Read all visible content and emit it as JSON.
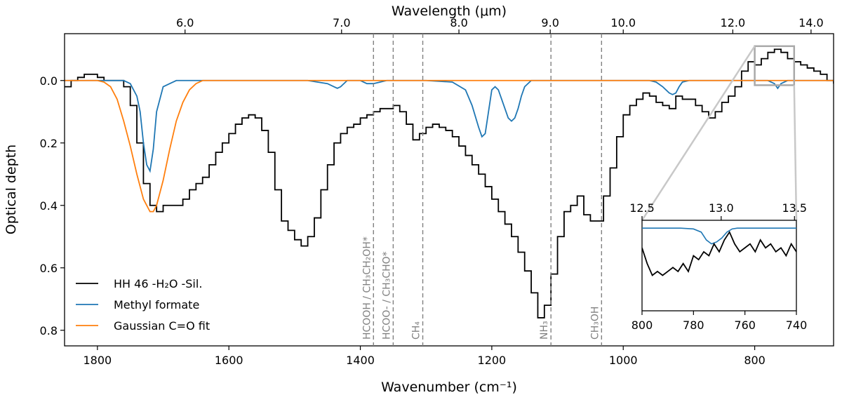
{
  "chart_data": {
    "type": "line",
    "xlabel": "Wavenumber (cm⁻¹)",
    "ylabel": "Optical depth",
    "top_xlabel": "Wavelength (μm)",
    "xlim": [
      1850,
      680
    ],
    "ylim": [
      0.85,
      -0.15
    ],
    "grid": false,
    "legend_position": "lower-left",
    "xticks": [
      1800,
      1600,
      1400,
      1200,
      1000,
      800
    ],
    "yticks": [
      0.0,
      0.2,
      0.4,
      0.6,
      0.8
    ],
    "ytick_labels": [
      "0.0",
      "0.2",
      "0.4",
      "0.6",
      "0.8"
    ],
    "top_ticks": [
      6.0,
      7.0,
      8.0,
      9.0,
      10.0,
      12.0,
      14.0
    ],
    "top_tick_labels": [
      "6.0",
      "7.0",
      "8.0",
      "9.0",
      "10.0",
      "12.0",
      "14.0"
    ],
    "series": [
      {
        "name": "HH 46 -H₂O -Sil.",
        "color": "#000000",
        "x": [
          1850,
          1840,
          1830,
          1820,
          1810,
          1800,
          1790,
          1780,
          1770,
          1760,
          1750,
          1740,
          1730,
          1720,
          1710,
          1700,
          1690,
          1680,
          1670,
          1660,
          1650,
          1640,
          1630,
          1620,
          1610,
          1600,
          1590,
          1580,
          1570,
          1560,
          1550,
          1540,
          1530,
          1520,
          1510,
          1500,
          1490,
          1480,
          1470,
          1460,
          1450,
          1440,
          1430,
          1420,
          1410,
          1400,
          1390,
          1380,
          1370,
          1360,
          1350,
          1340,
          1330,
          1320,
          1310,
          1300,
          1290,
          1280,
          1270,
          1260,
          1250,
          1240,
          1230,
          1220,
          1210,
          1200,
          1190,
          1180,
          1170,
          1160,
          1150,
          1140,
          1130,
          1120,
          1110,
          1100,
          1090,
          1080,
          1070,
          1060,
          1050,
          1040,
          1030,
          1020,
          1010,
          1000,
          990,
          980,
          970,
          960,
          950,
          940,
          930,
          920,
          910,
          900,
          890,
          880,
          870,
          860,
          850,
          840,
          830,
          820,
          810,
          800,
          790,
          780,
          770,
          760,
          750,
          740,
          730,
          720,
          710,
          700,
          690,
          680
        ],
        "y": [
          0.02,
          0.0,
          -0.01,
          -0.02,
          -0.02,
          -0.01,
          0.0,
          0.0,
          0.0,
          0.02,
          0.08,
          0.2,
          0.33,
          0.4,
          0.42,
          0.4,
          0.4,
          0.4,
          0.38,
          0.35,
          0.33,
          0.31,
          0.27,
          0.23,
          0.2,
          0.17,
          0.14,
          0.12,
          0.11,
          0.12,
          0.16,
          0.23,
          0.35,
          0.45,
          0.48,
          0.51,
          0.53,
          0.5,
          0.44,
          0.35,
          0.27,
          0.2,
          0.17,
          0.15,
          0.14,
          0.12,
          0.11,
          0.1,
          0.09,
          0.09,
          0.08,
          0.1,
          0.14,
          0.19,
          0.17,
          0.15,
          0.14,
          0.15,
          0.16,
          0.18,
          0.21,
          0.24,
          0.27,
          0.3,
          0.34,
          0.38,
          0.42,
          0.46,
          0.5,
          0.55,
          0.61,
          0.68,
          0.76,
          0.72,
          0.62,
          0.5,
          0.42,
          0.4,
          0.37,
          0.43,
          0.45,
          0.45,
          0.37,
          0.28,
          0.18,
          0.11,
          0.08,
          0.06,
          0.04,
          0.05,
          0.07,
          0.08,
          0.09,
          0.05,
          0.06,
          0.06,
          0.08,
          0.1,
          0.12,
          0.1,
          0.07,
          0.05,
          0.02,
          -0.03,
          -0.06,
          -0.05,
          -0.07,
          -0.09,
          -0.1,
          -0.09,
          -0.07,
          -0.06,
          -0.05,
          -0.04,
          -0.03,
          -0.02,
          0.0,
          0.01
        ]
      },
      {
        "name": "Methyl formate",
        "color": "#1f77b4",
        "x": [
          1850,
          1760,
          1750,
          1740,
          1735,
          1730,
          1725,
          1720,
          1715,
          1710,
          1700,
          1690,
          1680,
          1600,
          1480,
          1450,
          1440,
          1435,
          1430,
          1420,
          1400,
          1390,
          1380,
          1370,
          1360,
          1340,
          1300,
          1260,
          1240,
          1230,
          1220,
          1215,
          1210,
          1205,
          1200,
          1195,
          1190,
          1185,
          1180,
          1175,
          1170,
          1165,
          1160,
          1155,
          1150,
          1140,
          1130,
          1100,
          960,
          950,
          940,
          930,
          925,
          920,
          915,
          910,
          900,
          880,
          780,
          770,
          765,
          760,
          750,
          740,
          680
        ],
        "y": [
          0.0,
          0.0,
          0.01,
          0.05,
          0.1,
          0.2,
          0.27,
          0.29,
          0.22,
          0.1,
          0.02,
          0.01,
          0.0,
          0.0,
          0.0,
          0.01,
          0.02,
          0.025,
          0.02,
          0.0,
          0.0,
          0.01,
          0.01,
          0.005,
          0.0,
          0.0,
          0.0,
          0.005,
          0.03,
          0.08,
          0.15,
          0.18,
          0.17,
          0.1,
          0.03,
          0.02,
          0.03,
          0.06,
          0.09,
          0.12,
          0.13,
          0.12,
          0.09,
          0.05,
          0.02,
          0.0,
          0.0,
          0.0,
          0.0,
          0.005,
          0.02,
          0.04,
          0.045,
          0.04,
          0.02,
          0.005,
          0.0,
          0.0,
          0.0,
          0.01,
          0.025,
          0.01,
          0.0,
          0.0,
          0.0
        ]
      },
      {
        "name": "Gaussian C=O fit",
        "color": "#ff7f0e",
        "x": [
          1850,
          1800,
          1790,
          1780,
          1770,
          1760,
          1750,
          1740,
          1730,
          1720,
          1715,
          1710,
          1700,
          1690,
          1680,
          1670,
          1660,
          1650,
          1640,
          680
        ],
        "y": [
          0.0,
          0.0,
          0.005,
          0.02,
          0.06,
          0.13,
          0.21,
          0.3,
          0.38,
          0.42,
          0.42,
          0.4,
          0.32,
          0.22,
          0.13,
          0.07,
          0.03,
          0.01,
          0.0,
          0.0
        ]
      }
    ],
    "vlines": [
      {
        "x": 1380,
        "label": "HCOOH / CH₃CH₂OH*"
      },
      {
        "x": 1350,
        "label": "HCOO- / CH₃CHO*"
      },
      {
        "x": 1305,
        "label": "CH₄"
      },
      {
        "x": 1110,
        "label": "NH₃"
      },
      {
        "x": 1033,
        "label": "CH₃OH"
      }
    ],
    "inset": {
      "xlim": [
        800,
        740
      ],
      "xticks": [
        800,
        780,
        760,
        740
      ],
      "top_ticks": [
        12.5,
        13.0,
        13.5
      ],
      "top_tick_labels": [
        "12.5",
        "13.0",
        "13.5"
      ],
      "ylim": [
        0.12,
        -0.11
      ],
      "data_x": [
        800,
        798,
        796,
        794,
        792,
        790,
        788,
        786,
        784,
        782,
        780,
        778,
        776,
        774,
        772,
        770,
        768,
        766,
        764,
        762,
        760,
        758,
        756,
        754,
        752,
        750,
        748,
        746,
        744,
        742,
        740
      ],
      "data_y": [
        -0.04,
        0.0,
        0.03,
        0.02,
        0.03,
        0.02,
        0.01,
        0.02,
        0.0,
        0.02,
        -0.02,
        -0.01,
        -0.03,
        -0.02,
        -0.05,
        -0.03,
        -0.06,
        -0.08,
        -0.05,
        -0.03,
        -0.04,
        -0.05,
        -0.03,
        -0.06,
        -0.04,
        -0.05,
        -0.03,
        -0.04,
        -0.02,
        -0.05,
        -0.03
      ],
      "model_x": [
        800,
        785,
        780,
        777,
        775,
        773,
        771,
        769,
        767,
        765,
        763,
        760,
        755,
        740
      ],
      "model_y": [
        -0.09,
        -0.09,
        -0.088,
        -0.08,
        -0.06,
        -0.05,
        -0.055,
        -0.065,
        -0.08,
        -0.088,
        -0.09,
        -0.09,
        -0.09,
        -0.09
      ]
    }
  }
}
